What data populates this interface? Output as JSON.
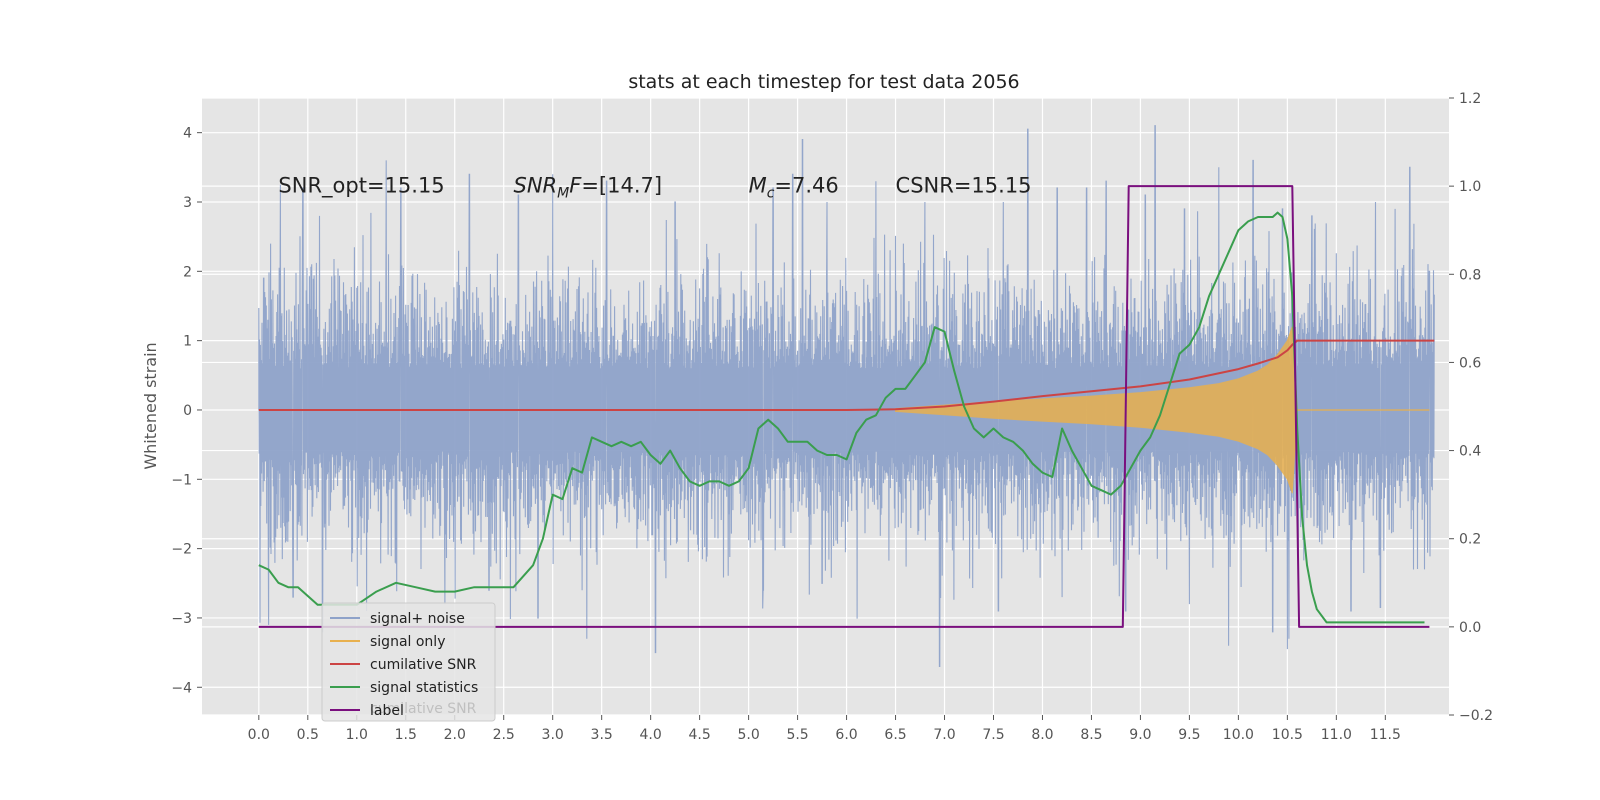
{
  "chart_data": {
    "type": "line",
    "title": "stats at each timestep for test data 2056",
    "xlabel": "",
    "ylabel": "Whitened strain",
    "y2label": "",
    "xlim": [
      -0.58,
      12.15
    ],
    "ylim": [
      -4.4,
      4.5
    ],
    "y2lim": [
      -0.2,
      1.2
    ],
    "grid": true,
    "x_ticks": [
      0.0,
      0.5,
      1.0,
      1.5,
      2.0,
      2.5,
      3.0,
      3.5,
      4.0,
      4.5,
      5.0,
      5.5,
      6.0,
      6.5,
      7.0,
      7.5,
      8.0,
      8.5,
      9.0,
      9.5,
      10.0,
      10.5,
      11.0,
      11.5
    ],
    "x_tick_labels": [
      "0.0",
      "0.5",
      "1.0",
      "1.5",
      "2.0",
      "2.5",
      "3.0",
      "3.5",
      "4.0",
      "4.5",
      "5.0",
      "5.5",
      "6.0",
      "6.5",
      "7.0",
      "7.5",
      "8.0",
      "8.5",
      "9.0",
      "9.5",
      "10.0",
      "10.5",
      "11.0",
      "11.5"
    ],
    "y_ticks": [
      -4,
      -3,
      -2,
      -1,
      0,
      1,
      2,
      3,
      4
    ],
    "y_tick_labels": [
      "−4",
      "−3",
      "−2",
      "−1",
      "0",
      "1",
      "2",
      "3",
      "4"
    ],
    "y2_ticks": [
      -0.2,
      0.0,
      0.2,
      0.4,
      0.6,
      0.8,
      1.0,
      1.2
    ],
    "y2_tick_labels": [
      "−0.2",
      "0.0",
      "0.2",
      "0.4",
      "0.6",
      "0.8",
      "1.0",
      "1.2"
    ],
    "annotations": [
      {
        "text": "SNR_opt=15.15",
        "x": 0.2,
        "y": 3.25
      },
      {
        "text": "SNR_M F=[14.7]",
        "x": 2.6,
        "y": 3.25
      },
      {
        "text": "M_c=7.46",
        "x": 5.0,
        "y": 3.25
      },
      {
        "text": "CSNR=15.15",
        "x": 6.5,
        "y": 3.25
      }
    ],
    "series": [
      {
        "name": "signal+ noise",
        "axis": "left",
        "kind": "noise",
        "x_range": [
          0.0,
          12.0
        ],
        "typical_band": [
          -1.7,
          1.7
        ],
        "peaks_up": [
          [
            0.05,
            1.9
          ],
          [
            0.12,
            2.4
          ],
          [
            0.22,
            3.25
          ],
          [
            0.45,
            3.2
          ],
          [
            0.62,
            2.8
          ],
          [
            1.3,
            3.6
          ],
          [
            1.45,
            3.2
          ],
          [
            2.15,
            3.4
          ],
          [
            2.65,
            3.1
          ],
          [
            3.0,
            3.4
          ],
          [
            3.55,
            3.3
          ],
          [
            4.25,
            3.0
          ],
          [
            5.25,
            3.2
          ],
          [
            5.45,
            3.4
          ],
          [
            5.55,
            3.9
          ],
          [
            5.8,
            3.0
          ],
          [
            6.3,
            3.3
          ],
          [
            6.8,
            3.0
          ],
          [
            7.6,
            3.0
          ],
          [
            7.85,
            4.05
          ],
          [
            8.15,
            3.2
          ],
          [
            8.45,
            3.2
          ],
          [
            8.65,
            3.3
          ],
          [
            9.05,
            3.1
          ],
          [
            9.15,
            4.1
          ],
          [
            9.45,
            2.9
          ],
          [
            9.8,
            3.5
          ],
          [
            10.15,
            3.6
          ],
          [
            10.45,
            2.9
          ],
          [
            10.75,
            2.8
          ],
          [
            11.4,
            3.0
          ],
          [
            11.6,
            2.9
          ],
          [
            11.75,
            3.5
          ],
          [
            11.95,
            2.0
          ]
        ],
        "peaks_down": [
          [
            0.05,
            -2.4
          ],
          [
            0.1,
            -3.1
          ],
          [
            0.35,
            -2.7
          ],
          [
            0.65,
            -3.2
          ],
          [
            1.1,
            -2.9
          ],
          [
            1.9,
            -2.8
          ],
          [
            2.35,
            -2.6
          ],
          [
            2.85,
            -3.0
          ],
          [
            3.3,
            -2.6
          ],
          [
            4.05,
            -3.5
          ],
          [
            5.15,
            -2.6
          ],
          [
            5.75,
            -2.5
          ],
          [
            6.95,
            -3.7
          ],
          [
            7.55,
            -2.9
          ],
          [
            8.2,
            -2.7
          ],
          [
            8.85,
            -2.9
          ],
          [
            9.5,
            -2.8
          ],
          [
            9.9,
            -3.4
          ],
          [
            10.35,
            -3.2
          ],
          [
            10.5,
            -3.45
          ],
          [
            11.15,
            -2.9
          ],
          [
            11.45,
            -2.85
          ],
          [
            11.9,
            -2.3
          ]
        ],
        "color": "#8ea2c9"
      },
      {
        "name": "signal only",
        "axis": "left",
        "kind": "envelope",
        "x": [
          6.5,
          7.0,
          7.5,
          8.0,
          8.5,
          9.0,
          9.5,
          9.8,
          10.0,
          10.2,
          10.3,
          10.4,
          10.5,
          10.55,
          10.6
        ],
        "amplitude": [
          0.02,
          0.07,
          0.12,
          0.16,
          0.2,
          0.25,
          0.32,
          0.38,
          0.45,
          0.56,
          0.65,
          0.8,
          1.0,
          1.2,
          0.01
        ],
        "after_x": 10.6,
        "after_amplitude": 0.0,
        "color": "#e8b04e"
      },
      {
        "name": "cumilative SNR",
        "axis": "left",
        "kind": "line",
        "x": [
          0.0,
          6.0,
          6.5,
          7.0,
          7.5,
          8.0,
          8.5,
          9.0,
          9.5,
          10.0,
          10.2,
          10.4,
          10.5,
          10.55,
          10.6,
          11.0,
          12.0
        ],
        "y": [
          0.0,
          0.0,
          0.01,
          0.05,
          0.12,
          0.2,
          0.27,
          0.34,
          0.44,
          0.59,
          0.67,
          0.76,
          0.86,
          0.94,
          1.0,
          1.0,
          1.0
        ],
        "color": "#cc4444"
      },
      {
        "name": "signal statistics",
        "axis": "right",
        "kind": "line",
        "x": [
          0.0,
          0.1,
          0.2,
          0.3,
          0.4,
          0.5,
          0.6,
          0.8,
          1.0,
          1.2,
          1.4,
          1.6,
          1.8,
          2.0,
          2.2,
          2.4,
          2.6,
          2.8,
          2.9,
          3.0,
          3.1,
          3.2,
          3.3,
          3.4,
          3.5,
          3.6,
          3.7,
          3.8,
          3.9,
          4.0,
          4.1,
          4.2,
          4.3,
          4.4,
          4.5,
          4.6,
          4.7,
          4.8,
          4.9,
          5.0,
          5.1,
          5.2,
          5.3,
          5.4,
          5.5,
          5.6,
          5.7,
          5.8,
          5.9,
          6.0,
          6.1,
          6.2,
          6.3,
          6.4,
          6.5,
          6.6,
          6.7,
          6.8,
          6.9,
          7.0,
          7.1,
          7.2,
          7.3,
          7.4,
          7.5,
          7.6,
          7.7,
          7.8,
          7.9,
          8.0,
          8.1,
          8.2,
          8.3,
          8.4,
          8.5,
          8.6,
          8.7,
          8.8,
          8.9,
          9.0,
          9.1,
          9.2,
          9.3,
          9.4,
          9.5,
          9.6,
          9.7,
          9.8,
          9.9,
          10.0,
          10.1,
          10.2,
          10.3,
          10.35,
          10.4,
          10.45,
          10.5,
          10.55,
          10.6,
          10.65,
          10.7,
          10.75,
          10.8,
          10.9,
          11.0,
          11.2,
          11.4,
          11.6,
          11.8,
          11.9
        ],
        "y": [
          0.14,
          0.13,
          0.1,
          0.09,
          0.09,
          0.07,
          0.05,
          0.05,
          0.05,
          0.08,
          0.1,
          0.09,
          0.08,
          0.08,
          0.09,
          0.09,
          0.09,
          0.14,
          0.2,
          0.3,
          0.29,
          0.36,
          0.35,
          0.43,
          0.42,
          0.41,
          0.42,
          0.41,
          0.42,
          0.39,
          0.37,
          0.4,
          0.36,
          0.33,
          0.32,
          0.33,
          0.33,
          0.32,
          0.33,
          0.36,
          0.45,
          0.47,
          0.45,
          0.42,
          0.42,
          0.42,
          0.4,
          0.39,
          0.39,
          0.38,
          0.44,
          0.47,
          0.48,
          0.52,
          0.54,
          0.54,
          0.57,
          0.6,
          0.68,
          0.67,
          0.58,
          0.5,
          0.45,
          0.43,
          0.45,
          0.43,
          0.42,
          0.4,
          0.37,
          0.35,
          0.34,
          0.45,
          0.4,
          0.36,
          0.32,
          0.31,
          0.3,
          0.32,
          0.36,
          0.4,
          0.43,
          0.48,
          0.55,
          0.62,
          0.64,
          0.68,
          0.75,
          0.8,
          0.85,
          0.9,
          0.92,
          0.93,
          0.93,
          0.93,
          0.94,
          0.93,
          0.88,
          0.75,
          0.45,
          0.25,
          0.14,
          0.08,
          0.04,
          0.01,
          0.01,
          0.01,
          0.01,
          0.01,
          0.01,
          0.01
        ],
        "color": "#3a9e4e"
      },
      {
        "name": "label",
        "axis": "right",
        "kind": "line",
        "x": [
          0.0,
          8.82,
          8.88,
          10.55,
          10.62,
          11.95
        ],
        "y": [
          0.0,
          0.0,
          1.0,
          1.0,
          0.0,
          0.0
        ],
        "color": "#7a0f7e"
      }
    ],
    "legend": {
      "placement": "lower-left",
      "entries": [
        {
          "label": "signal+ noise",
          "color": "#8ea2c9"
        },
        {
          "label": "signal only",
          "color": "#e8b04e"
        },
        {
          "label": "cumilative SNR",
          "color": "#cc4444"
        },
        {
          "label": "signal statistics",
          "color": "#3a9e4e"
        },
        {
          "label": "label",
          "color": "#7a0f7e"
        }
      ],
      "overlapped_text": "cumilative SNR"
    }
  }
}
